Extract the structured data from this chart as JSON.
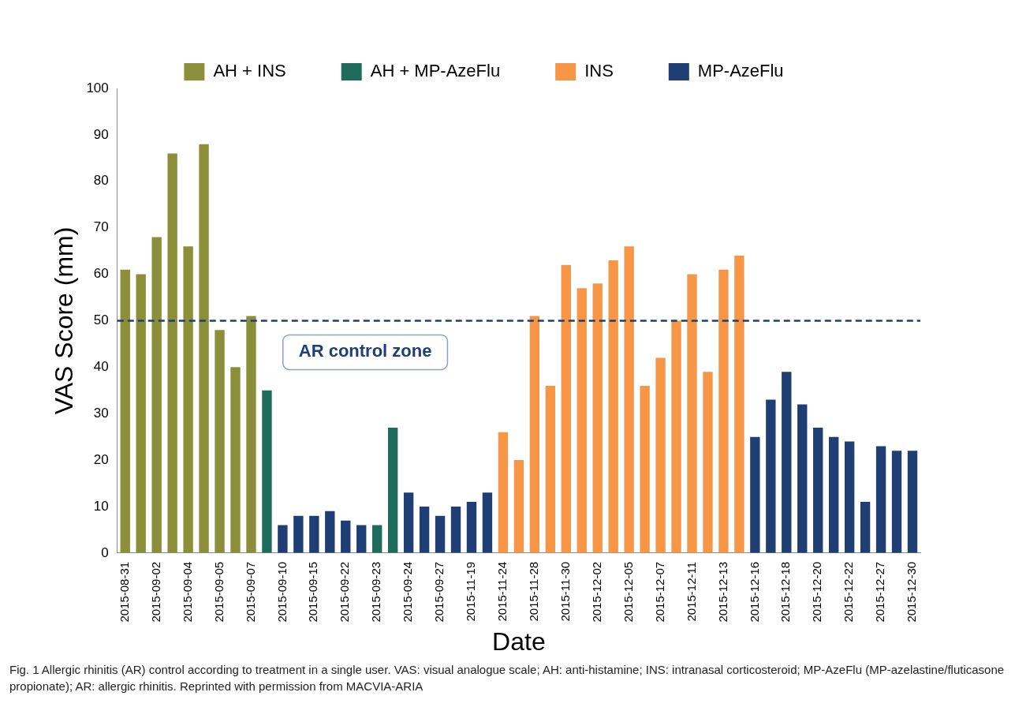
{
  "chart_data": {
    "type": "bar",
    "xlabel": "Date",
    "ylabel": "VAS Score (mm)",
    "categories": [
      "2015-08-31",
      null,
      "2015-09-02",
      null,
      "2015-09-04",
      null,
      "2015-09-05",
      null,
      "2015-09-07",
      null,
      "2015-09-10",
      null,
      "2015-09-15",
      null,
      "2015-09-22",
      null,
      "2015-09-23",
      null,
      "2015-09-24",
      null,
      "2015-09-27",
      null,
      "2015-11-19",
      null,
      "2015-11-24",
      null,
      "2015-11-28",
      null,
      "2015-11-30",
      null,
      "2015-12-02",
      null,
      "2015-12-05",
      null,
      "2015-12-07",
      null,
      "2015-12-11",
      null,
      "2015-12-13",
      null,
      "2015-12-16",
      null,
      "2015-12-18",
      null,
      "2015-12-20",
      null,
      "2015-12-22",
      null,
      "2015-12-27",
      null,
      "2015-12-30"
    ],
    "series": [
      {
        "name": "AH + INS",
        "color": "#8c8f3a",
        "values": [
          61,
          60,
          68,
          86,
          66,
          88,
          48,
          40,
          51,
          null,
          null,
          null,
          null,
          null,
          null,
          null,
          null,
          null,
          null,
          null,
          null,
          null,
          null,
          null,
          null,
          null,
          null,
          null,
          null,
          null,
          null,
          null,
          null,
          null,
          null,
          null,
          null,
          null,
          null,
          null,
          null,
          null,
          null,
          null,
          null,
          null,
          null,
          null,
          null,
          null,
          null
        ]
      },
      {
        "name": "AH + MP-AzeFlu",
        "color": "#1f6b5c",
        "values": [
          null,
          null,
          null,
          null,
          null,
          null,
          null,
          null,
          null,
          35,
          null,
          null,
          null,
          null,
          null,
          null,
          6,
          27,
          null,
          null,
          null,
          null,
          null,
          null,
          null,
          null,
          null,
          null,
          null,
          null,
          null,
          null,
          null,
          null,
          null,
          null,
          null,
          null,
          null,
          null,
          null,
          null,
          null,
          null,
          null,
          null,
          null,
          null,
          null,
          null,
          null
        ]
      },
      {
        "name": "INS",
        "color": "#f79646",
        "values": [
          null,
          null,
          null,
          null,
          null,
          null,
          null,
          null,
          null,
          null,
          null,
          null,
          null,
          null,
          null,
          null,
          null,
          null,
          null,
          null,
          null,
          null,
          null,
          null,
          26,
          20,
          51,
          36,
          62,
          57,
          58,
          63,
          66,
          36,
          42,
          50,
          60,
          39,
          61,
          64,
          null,
          null,
          null,
          null,
          null,
          null,
          null,
          null,
          null,
          null,
          null
        ]
      },
      {
        "name": "MP-AzeFlu",
        "color": "#1f3f74",
        "values": [
          null,
          null,
          null,
          null,
          null,
          null,
          null,
          null,
          null,
          null,
          6,
          8,
          8,
          9,
          7,
          6,
          null,
          null,
          13,
          10,
          8,
          10,
          11,
          13,
          null,
          null,
          null,
          null,
          null,
          null,
          null,
          null,
          null,
          null,
          null,
          null,
          null,
          null,
          null,
          null,
          25,
          33,
          39,
          32,
          27,
          25,
          24,
          11,
          23,
          22,
          22
        ]
      }
    ],
    "ylim": [
      0,
      100
    ],
    "yticks": [
      0,
      10,
      20,
      30,
      40,
      50,
      60,
      70,
      80,
      90,
      100
    ],
    "grid": false,
    "legend": "top",
    "ref_lines": [
      {
        "axis": "y",
        "value": 50,
        "label": "AR control zone",
        "color": "#1f3f74",
        "line_style": "dashed"
      }
    ],
    "annotations": [
      "Fig. 1 Allergic rhinitis (AR) control according to treatment in a single user. VAS: visual analogue scale; AH: anti-histamine; INS: intranasal corticosteroid; MP-AzeFlu (MP-azelastine/fluticasone propionate); AR: allergic rhinitis. Reprinted with permission from MACVIA-ARIA"
    ]
  }
}
